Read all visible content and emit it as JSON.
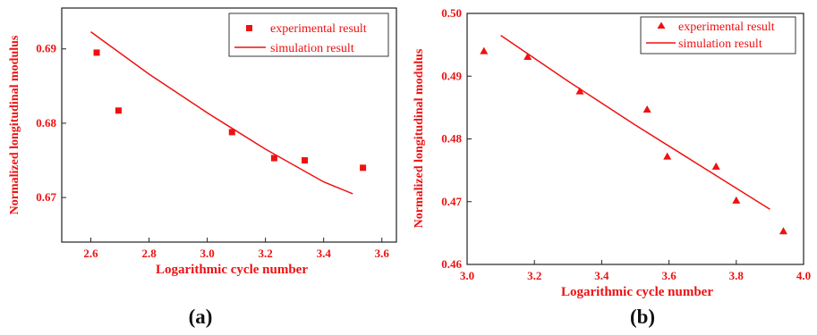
{
  "colors": {
    "accent": "#ee1111",
    "frame": "#222222"
  },
  "chart_data": [
    {
      "type": "scatter",
      "panel_label": "(a)",
      "xlabel": "Logarithmic cycle number",
      "ylabel": "Normalized longitudinal modulus",
      "xlim": [
        2.5,
        3.65
      ],
      "ylim": [
        0.664,
        0.6955
      ],
      "x_ticks": [
        2.6,
        2.8,
        3.0,
        3.2,
        3.4,
        3.6
      ],
      "x_tick_labels": [
        "2.6",
        "2.8",
        "3.0",
        "3.2",
        "3.4",
        "3.6"
      ],
      "y_ticks": [
        0.67,
        0.68,
        0.69
      ],
      "y_tick_labels": [
        "0.67",
        "0.68",
        "0.69"
      ],
      "legend_position": "top-right",
      "series": [
        {
          "name": "experimental result",
          "kind": "scatter",
          "marker": "square",
          "x": [
            2.62,
            2.695,
            3.085,
            3.23,
            3.335,
            3.535
          ],
          "y": [
            0.6895,
            0.6817,
            0.6788,
            0.6753,
            0.675,
            0.674
          ]
        },
        {
          "name": "simulation result",
          "kind": "line",
          "x": [
            2.6,
            2.8,
            3.0,
            3.2,
            3.4,
            3.5
          ],
          "y": [
            0.6923,
            0.6866,
            0.6814,
            0.6765,
            0.6721,
            0.6705
          ]
        }
      ]
    },
    {
      "type": "scatter",
      "panel_label": "(b)",
      "xlabel": "Logarithmic cycle number",
      "ylabel": "Normalized longitudinal modulus",
      "xlim": [
        3.0,
        4.0
      ],
      "ylim": [
        0.46,
        0.5
      ],
      "x_ticks": [
        3.0,
        3.2,
        3.4,
        3.6,
        3.8,
        4.0
      ],
      "x_tick_labels": [
        "3.0",
        "3.2",
        "3.4",
        "3.6",
        "3.8",
        "4.0"
      ],
      "y_ticks": [
        0.46,
        0.47,
        0.48,
        0.49,
        0.5
      ],
      "y_tick_labels": [
        "0.46",
        "0.47",
        "0.48",
        "0.49",
        "0.50"
      ],
      "legend_position": "top-right",
      "series": [
        {
          "name": "experimental result",
          "kind": "scatter",
          "marker": "triangle",
          "x": [
            3.05,
            3.18,
            3.335,
            3.535,
            3.595,
            3.74,
            3.8,
            3.94
          ],
          "y": [
            0.494,
            0.4931,
            0.4876,
            0.4847,
            0.4772,
            0.4756,
            0.4702,
            0.4653
          ]
        },
        {
          "name": "simulation result",
          "kind": "line",
          "x": [
            3.1,
            3.3,
            3.5,
            3.7,
            3.9
          ],
          "y": [
            0.4965,
            0.4892,
            0.4822,
            0.4755,
            0.4688
          ]
        }
      ]
    }
  ]
}
